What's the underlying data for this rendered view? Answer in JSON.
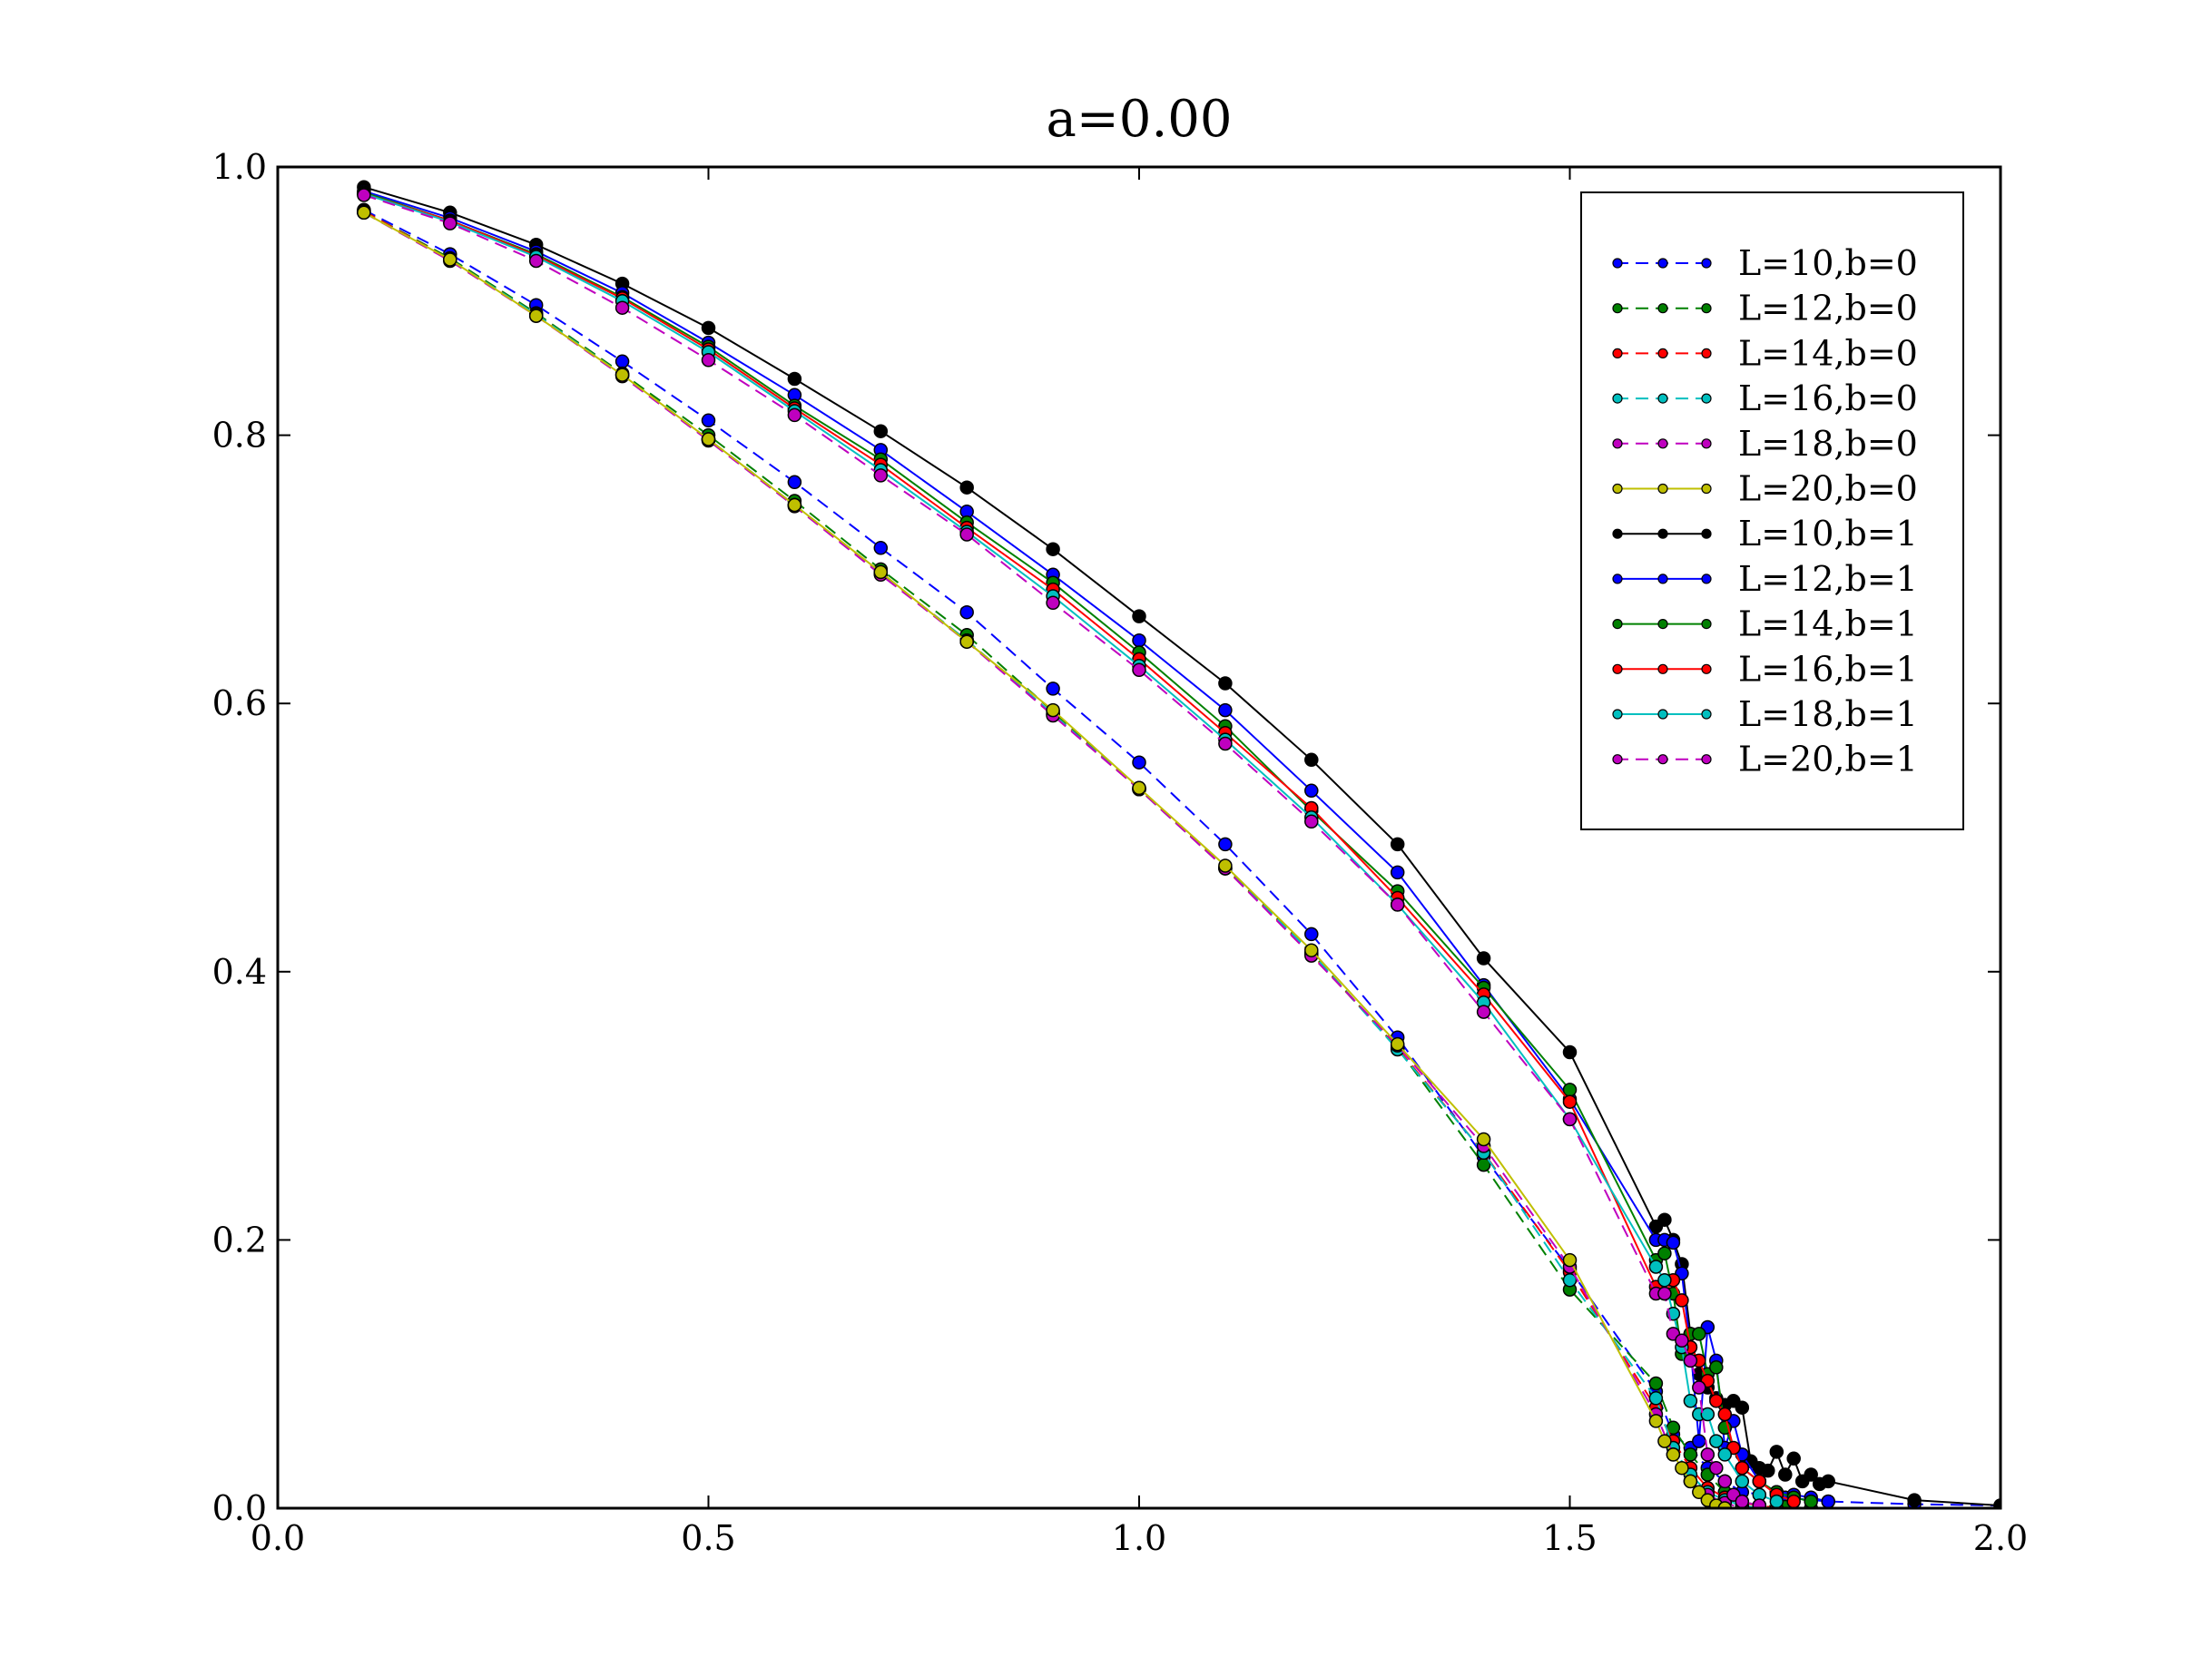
{
  "chart_data": {
    "type": "line",
    "title": "a=0.00",
    "xlabel": "",
    "ylabel": "",
    "xlim": [
      0.0,
      2.0
    ],
    "ylim": [
      0.0,
      1.0
    ],
    "xticks": [
      0.0,
      0.5,
      1.0,
      1.5,
      2.0
    ],
    "yticks": [
      0.0,
      0.2,
      0.4,
      0.6,
      0.8,
      1.0
    ],
    "xtick_labels": [
      "0.0",
      "0.5",
      "1.0",
      "1.5",
      "2.0"
    ],
    "ytick_labels": [
      "0.0",
      "0.2",
      "0.4",
      "0.6",
      "0.8",
      "1.0"
    ],
    "grid": false,
    "legend_position": "top-right",
    "series": [
      {
        "name": "L=10,b=0",
        "color": "#0000ff",
        "dash": true,
        "x": [
          0.1,
          0.2,
          0.3,
          0.4,
          0.5,
          0.6,
          0.7,
          0.8,
          0.9,
          1.0,
          1.1,
          1.2,
          1.3,
          1.4,
          1.5,
          1.6,
          1.62,
          1.64,
          1.66,
          1.68,
          1.7,
          1.75,
          1.8,
          1.9,
          2.0
        ],
        "y": [
          0.968,
          0.935,
          0.897,
          0.855,
          0.811,
          0.765,
          0.716,
          0.668,
          0.611,
          0.556,
          0.495,
          0.428,
          0.351,
          0.262,
          0.178,
          0.087,
          0.055,
          0.045,
          0.03,
          0.02,
          0.012,
          0.008,
          0.005,
          0.003,
          0.002
        ]
      },
      {
        "name": "L=12,b=0",
        "color": "#008000",
        "dash": true,
        "x": [
          0.1,
          0.2,
          0.3,
          0.4,
          0.5,
          0.6,
          0.7,
          0.8,
          0.9,
          1.0,
          1.1,
          1.2,
          1.3,
          1.4,
          1.5,
          1.6,
          1.62,
          1.64,
          1.66,
          1.68,
          1.7,
          1.72,
          1.75,
          1.78
        ],
        "y": [
          0.967,
          0.932,
          0.891,
          0.846,
          0.8,
          0.751,
          0.7,
          0.651,
          0.594,
          0.537,
          0.478,
          0.414,
          0.343,
          0.256,
          0.163,
          0.093,
          0.06,
          0.04,
          0.025,
          0.012,
          0.005,
          0.002,
          0.001,
          0.0
        ]
      },
      {
        "name": "L=14,b=0",
        "color": "#ff0000",
        "dash": true,
        "x": [
          0.1,
          0.2,
          0.3,
          0.4,
          0.5,
          0.6,
          0.7,
          0.8,
          0.9,
          1.0,
          1.1,
          1.2,
          1.3,
          1.4,
          1.5,
          1.6,
          1.62,
          1.64,
          1.66,
          1.68,
          1.7,
          1.72,
          1.74
        ],
        "y": [
          0.967,
          0.931,
          0.89,
          0.845,
          0.797,
          0.748,
          0.697,
          0.647,
          0.592,
          0.536,
          0.477,
          0.413,
          0.343,
          0.265,
          0.176,
          0.075,
          0.05,
          0.03,
          0.015,
          0.008,
          0.004,
          0.002,
          0.0
        ]
      },
      {
        "name": "L=16,b=0",
        "color": "#00bfbf",
        "dash": true,
        "x": [
          0.1,
          0.2,
          0.3,
          0.4,
          0.5,
          0.6,
          0.7,
          0.8,
          0.9,
          1.0,
          1.1,
          1.2,
          1.3,
          1.4,
          1.5,
          1.6,
          1.62,
          1.64,
          1.66,
          1.68,
          1.7,
          1.72
        ],
        "y": [
          0.966,
          0.931,
          0.89,
          0.845,
          0.797,
          0.748,
          0.697,
          0.647,
          0.592,
          0.536,
          0.477,
          0.414,
          0.342,
          0.265,
          0.17,
          0.082,
          0.045,
          0.025,
          0.012,
          0.006,
          0.002,
          0.0
        ]
      },
      {
        "name": "L=18,b=0",
        "color": "#bf00bf",
        "dash": true,
        "x": [
          0.1,
          0.2,
          0.3,
          0.4,
          0.5,
          0.6,
          0.7,
          0.8,
          0.9,
          1.0,
          1.1,
          1.2,
          1.3,
          1.4,
          1.5,
          1.6,
          1.62,
          1.64,
          1.66,
          1.68,
          1.7
        ],
        "y": [
          0.966,
          0.93,
          0.889,
          0.844,
          0.796,
          0.747,
          0.696,
          0.646,
          0.591,
          0.536,
          0.477,
          0.412,
          0.345,
          0.27,
          0.18,
          0.07,
          0.04,
          0.02,
          0.01,
          0.004,
          0.0
        ]
      },
      {
        "name": "L=20,b=0",
        "color": "#bfbf00",
        "dash": false,
        "x": [
          0.1,
          0.2,
          0.3,
          0.4,
          0.5,
          0.6,
          0.7,
          0.8,
          0.9,
          1.0,
          1.1,
          1.2,
          1.3,
          1.4,
          1.5,
          1.6,
          1.61,
          1.62,
          1.63,
          1.64,
          1.65,
          1.66,
          1.67,
          1.68
        ],
        "y": [
          0.966,
          0.931,
          0.889,
          0.845,
          0.797,
          0.748,
          0.698,
          0.646,
          0.595,
          0.537,
          0.479,
          0.416,
          0.346,
          0.275,
          0.185,
          0.065,
          0.05,
          0.04,
          0.03,
          0.02,
          0.012,
          0.006,
          0.002,
          0.0
        ]
      },
      {
        "name": "L=10,b=1",
        "color": "#000000",
        "dash": false,
        "x": [
          0.1,
          0.2,
          0.3,
          0.4,
          0.5,
          0.6,
          0.7,
          0.8,
          0.9,
          1.0,
          1.1,
          1.2,
          1.3,
          1.4,
          1.5,
          1.6,
          1.61,
          1.62,
          1.63,
          1.64,
          1.65,
          1.66,
          1.67,
          1.68,
          1.69,
          1.7,
          1.71,
          1.72,
          1.73,
          1.74,
          1.75,
          1.76,
          1.77,
          1.78,
          1.79,
          1.8,
          1.9,
          2.0
        ],
        "y": [
          0.985,
          0.966,
          0.942,
          0.913,
          0.88,
          0.842,
          0.803,
          0.761,
          0.715,
          0.665,
          0.615,
          0.558,
          0.495,
          0.41,
          0.34,
          0.21,
          0.215,
          0.2,
          0.182,
          0.13,
          0.1,
          0.09,
          0.082,
          0.077,
          0.08,
          0.075,
          0.035,
          0.03,
          0.028,
          0.042,
          0.025,
          0.037,
          0.02,
          0.025,
          0.018,
          0.02,
          0.006,
          0.002
        ]
      },
      {
        "name": "L=12,b=1",
        "color": "#0000ff",
        "dash": false,
        "x": [
          0.1,
          0.2,
          0.3,
          0.4,
          0.5,
          0.6,
          0.7,
          0.8,
          0.9,
          1.0,
          1.1,
          1.2,
          1.3,
          1.4,
          1.5,
          1.6,
          1.61,
          1.62,
          1.63,
          1.64,
          1.65,
          1.66,
          1.67,
          1.68,
          1.69,
          1.7,
          1.72,
          1.74,
          1.76,
          1.78,
          1.8
        ],
        "y": [
          0.982,
          0.962,
          0.937,
          0.906,
          0.869,
          0.83,
          0.789,
          0.743,
          0.696,
          0.647,
          0.595,
          0.535,
          0.474,
          0.39,
          0.305,
          0.2,
          0.2,
          0.198,
          0.175,
          0.12,
          0.05,
          0.135,
          0.11,
          0.045,
          0.065,
          0.04,
          0.02,
          0.012,
          0.01,
          0.008,
          0.005
        ]
      },
      {
        "name": "L=14,b=1",
        "color": "#008000",
        "dash": false,
        "x": [
          0.1,
          0.2,
          0.3,
          0.4,
          0.5,
          0.6,
          0.7,
          0.8,
          0.9,
          1.0,
          1.1,
          1.2,
          1.3,
          1.4,
          1.5,
          1.6,
          1.61,
          1.62,
          1.63,
          1.64,
          1.65,
          1.66,
          1.67,
          1.68,
          1.7,
          1.72,
          1.74,
          1.76,
          1.78
        ],
        "y": [
          0.981,
          0.96,
          0.935,
          0.903,
          0.866,
          0.822,
          0.782,
          0.735,
          0.69,
          0.638,
          0.583,
          0.52,
          0.46,
          0.388,
          0.312,
          0.185,
          0.19,
          0.16,
          0.115,
          0.13,
          0.13,
          0.1,
          0.105,
          0.06,
          0.03,
          0.02,
          0.012,
          0.008,
          0.005
        ]
      },
      {
        "name": "L=16,b=1",
        "color": "#ff0000",
        "dash": false,
        "x": [
          0.1,
          0.2,
          0.3,
          0.4,
          0.5,
          0.6,
          0.7,
          0.8,
          0.9,
          1.0,
          1.1,
          1.2,
          1.3,
          1.4,
          1.5,
          1.6,
          1.61,
          1.62,
          1.63,
          1.64,
          1.65,
          1.66,
          1.67,
          1.68,
          1.69,
          1.7,
          1.72,
          1.74,
          1.76
        ],
        "y": [
          0.98,
          0.96,
          0.934,
          0.902,
          0.864,
          0.82,
          0.778,
          0.731,
          0.685,
          0.633,
          0.578,
          0.522,
          0.455,
          0.383,
          0.303,
          0.165,
          0.16,
          0.17,
          0.155,
          0.12,
          0.11,
          0.095,
          0.08,
          0.07,
          0.045,
          0.03,
          0.02,
          0.01,
          0.005
        ]
      },
      {
        "name": "L=18,b=1",
        "color": "#00bfbf",
        "dash": false,
        "x": [
          0.1,
          0.2,
          0.3,
          0.4,
          0.5,
          0.6,
          0.7,
          0.8,
          0.9,
          1.0,
          1.1,
          1.2,
          1.3,
          1.4,
          1.5,
          1.6,
          1.61,
          1.62,
          1.63,
          1.64,
          1.65,
          1.66,
          1.67,
          1.68,
          1.7,
          1.72,
          1.74
        ],
        "y": [
          0.98,
          0.959,
          0.933,
          0.9,
          0.862,
          0.818,
          0.774,
          0.728,
          0.68,
          0.628,
          0.573,
          0.515,
          0.45,
          0.377,
          0.29,
          0.18,
          0.17,
          0.145,
          0.12,
          0.08,
          0.07,
          0.07,
          0.05,
          0.04,
          0.02,
          0.01,
          0.005
        ]
      },
      {
        "name": "L=20,b=1",
        "color": "#bf00bf",
        "dash": true,
        "x": [
          0.1,
          0.2,
          0.3,
          0.4,
          0.5,
          0.6,
          0.7,
          0.8,
          0.9,
          1.0,
          1.1,
          1.2,
          1.3,
          1.4,
          1.5,
          1.6,
          1.61,
          1.62,
          1.63,
          1.64,
          1.65,
          1.66,
          1.67,
          1.68,
          1.69,
          1.7,
          1.72
        ],
        "y": [
          0.979,
          0.958,
          0.93,
          0.895,
          0.856,
          0.815,
          0.77,
          0.726,
          0.675,
          0.625,
          0.57,
          0.512,
          0.45,
          0.37,
          0.29,
          0.16,
          0.16,
          0.13,
          0.125,
          0.11,
          0.09,
          0.04,
          0.03,
          0.02,
          0.01,
          0.005,
          0.002
        ]
      }
    ]
  }
}
